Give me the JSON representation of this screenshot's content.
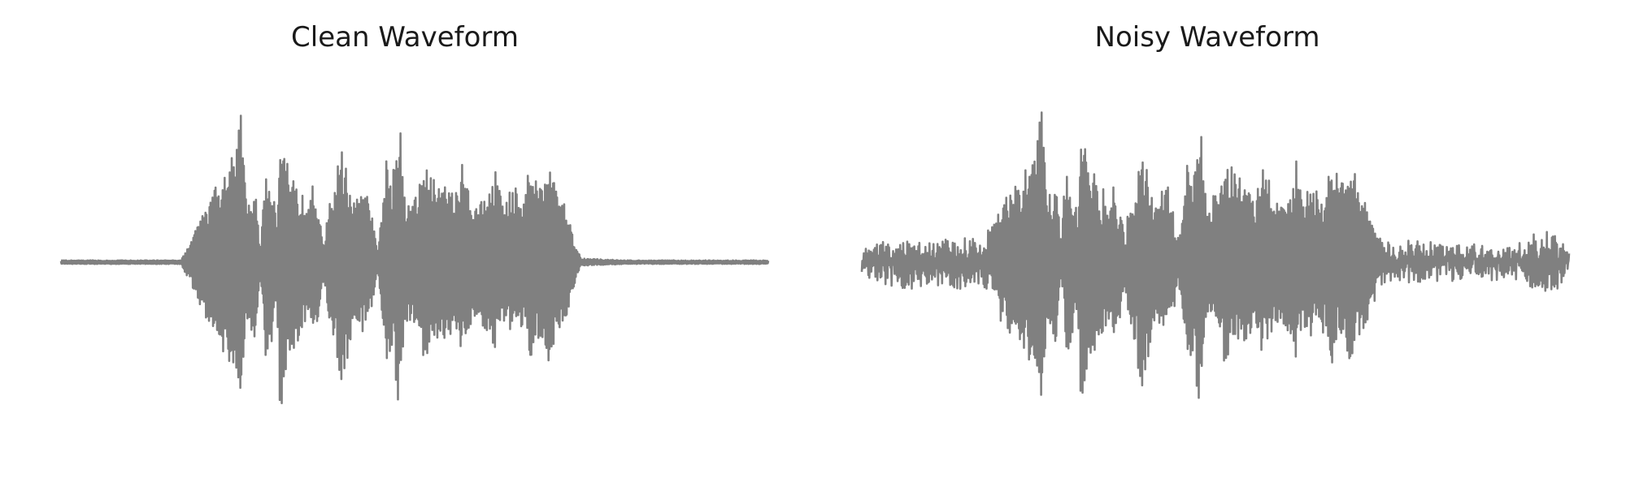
{
  "chart_data": [
    {
      "type": "line",
      "title": "Clean Waveform",
      "axes_visible": false,
      "grid": false,
      "line_color": "#808080",
      "x_range": [
        0,
        1
      ],
      "ylim": [
        -1,
        1
      ],
      "noise_floor": 0.0,
      "series": [
        {
          "values": [
            [
              0.0,
              0.01
            ],
            [
              0.17,
              0.01
            ],
            [
              0.235,
              0.55
            ],
            [
              0.248,
              0.6
            ],
            [
              0.255,
              1.0
            ],
            [
              0.262,
              0.3
            ],
            [
              0.275,
              0.45
            ],
            [
              0.282,
              0.05
            ],
            [
              0.29,
              0.55
            ],
            [
              0.298,
              0.45
            ],
            [
              0.305,
              0.2
            ],
            [
              0.31,
              0.85
            ],
            [
              0.318,
              0.6
            ],
            [
              0.326,
              0.45
            ],
            [
              0.332,
              0.48
            ],
            [
              0.34,
              0.38
            ],
            [
              0.348,
              0.3
            ],
            [
              0.356,
              0.42
            ],
            [
              0.362,
              0.35
            ],
            [
              0.372,
              0.1
            ],
            [
              0.38,
              0.35
            ],
            [
              0.388,
              0.45
            ],
            [
              0.396,
              0.65
            ],
            [
              0.404,
              0.55
            ],
            [
              0.412,
              0.35
            ],
            [
              0.42,
              0.35
            ],
            [
              0.428,
              0.38
            ],
            [
              0.436,
              0.35
            ],
            [
              0.448,
              0.05
            ],
            [
              0.46,
              0.55
            ],
            [
              0.468,
              0.45
            ],
            [
              0.478,
              0.85
            ],
            [
              0.486,
              0.35
            ],
            [
              0.495,
              0.35
            ],
            [
              0.505,
              0.4
            ],
            [
              0.515,
              0.55
            ],
            [
              0.522,
              0.45
            ],
            [
              0.53,
              0.5
            ],
            [
              0.54,
              0.4
            ],
            [
              0.548,
              0.45
            ],
            [
              0.556,
              0.35
            ],
            [
              0.566,
              0.55
            ],
            [
              0.574,
              0.4
            ],
            [
              0.585,
              0.3
            ],
            [
              0.596,
              0.35
            ],
            [
              0.606,
              0.4
            ],
            [
              0.615,
              0.5
            ],
            [
              0.625,
              0.35
            ],
            [
              0.636,
              0.4
            ],
            [
              0.646,
              0.45
            ],
            [
              0.655,
              0.33
            ],
            [
              0.664,
              0.6
            ],
            [
              0.672,
              0.45
            ],
            [
              0.68,
              0.4
            ],
            [
              0.69,
              0.55
            ],
            [
              0.7,
              0.4
            ],
            [
              0.712,
              0.35
            ],
            [
              0.72,
              0.2
            ],
            [
              0.735,
              0.02
            ],
            [
              0.8,
              0.01
            ],
            [
              0.9,
              0.01
            ],
            [
              1.0,
              0.01
            ]
          ]
        }
      ]
    },
    {
      "type": "line",
      "title": "Noisy Waveform",
      "axes_visible": false,
      "grid": false,
      "line_color": "#808080",
      "x_range": [
        0,
        1
      ],
      "ylim": [
        -1,
        1
      ],
      "noise_floor": 0.06,
      "series": [
        {
          "values": [
            [
              0.0,
              0.01
            ],
            [
              0.02,
              0.06
            ],
            [
              0.06,
              0.1
            ],
            [
              0.1,
              0.08
            ],
            [
              0.14,
              0.09
            ],
            [
              0.17,
              0.07
            ],
            [
              0.235,
              0.55
            ],
            [
              0.248,
              0.6
            ],
            [
              0.255,
              1.0
            ],
            [
              0.262,
              0.3
            ],
            [
              0.275,
              0.45
            ],
            [
              0.282,
              0.08
            ],
            [
              0.29,
              0.55
            ],
            [
              0.298,
              0.45
            ],
            [
              0.305,
              0.2
            ],
            [
              0.31,
              0.85
            ],
            [
              0.318,
              0.6
            ],
            [
              0.326,
              0.45
            ],
            [
              0.332,
              0.48
            ],
            [
              0.34,
              0.38
            ],
            [
              0.348,
              0.3
            ],
            [
              0.356,
              0.42
            ],
            [
              0.362,
              0.35
            ],
            [
              0.372,
              0.12
            ],
            [
              0.38,
              0.35
            ],
            [
              0.388,
              0.45
            ],
            [
              0.396,
              0.65
            ],
            [
              0.404,
              0.55
            ],
            [
              0.412,
              0.35
            ],
            [
              0.42,
              0.35
            ],
            [
              0.428,
              0.38
            ],
            [
              0.436,
              0.35
            ],
            [
              0.448,
              0.08
            ],
            [
              0.46,
              0.55
            ],
            [
              0.468,
              0.45
            ],
            [
              0.478,
              0.85
            ],
            [
              0.486,
              0.35
            ],
            [
              0.495,
              0.35
            ],
            [
              0.505,
              0.4
            ],
            [
              0.515,
              0.55
            ],
            [
              0.522,
              0.45
            ],
            [
              0.53,
              0.5
            ],
            [
              0.54,
              0.4
            ],
            [
              0.548,
              0.45
            ],
            [
              0.556,
              0.35
            ],
            [
              0.566,
              0.55
            ],
            [
              0.574,
              0.4
            ],
            [
              0.585,
              0.3
            ],
            [
              0.596,
              0.35
            ],
            [
              0.606,
              0.4
            ],
            [
              0.615,
              0.5
            ],
            [
              0.625,
              0.35
            ],
            [
              0.636,
              0.4
            ],
            [
              0.646,
              0.45
            ],
            [
              0.655,
              0.33
            ],
            [
              0.664,
              0.6
            ],
            [
              0.672,
              0.45
            ],
            [
              0.68,
              0.4
            ],
            [
              0.69,
              0.55
            ],
            [
              0.7,
              0.4
            ],
            [
              0.712,
              0.35
            ],
            [
              0.72,
              0.2
            ],
            [
              0.74,
              0.07
            ],
            [
              0.8,
              0.06
            ],
            [
              0.88,
              0.05
            ],
            [
              0.92,
              0.04
            ],
            [
              0.95,
              0.1
            ],
            [
              0.975,
              0.12
            ],
            [
              1.0,
              0.03
            ]
          ]
        }
      ]
    }
  ]
}
